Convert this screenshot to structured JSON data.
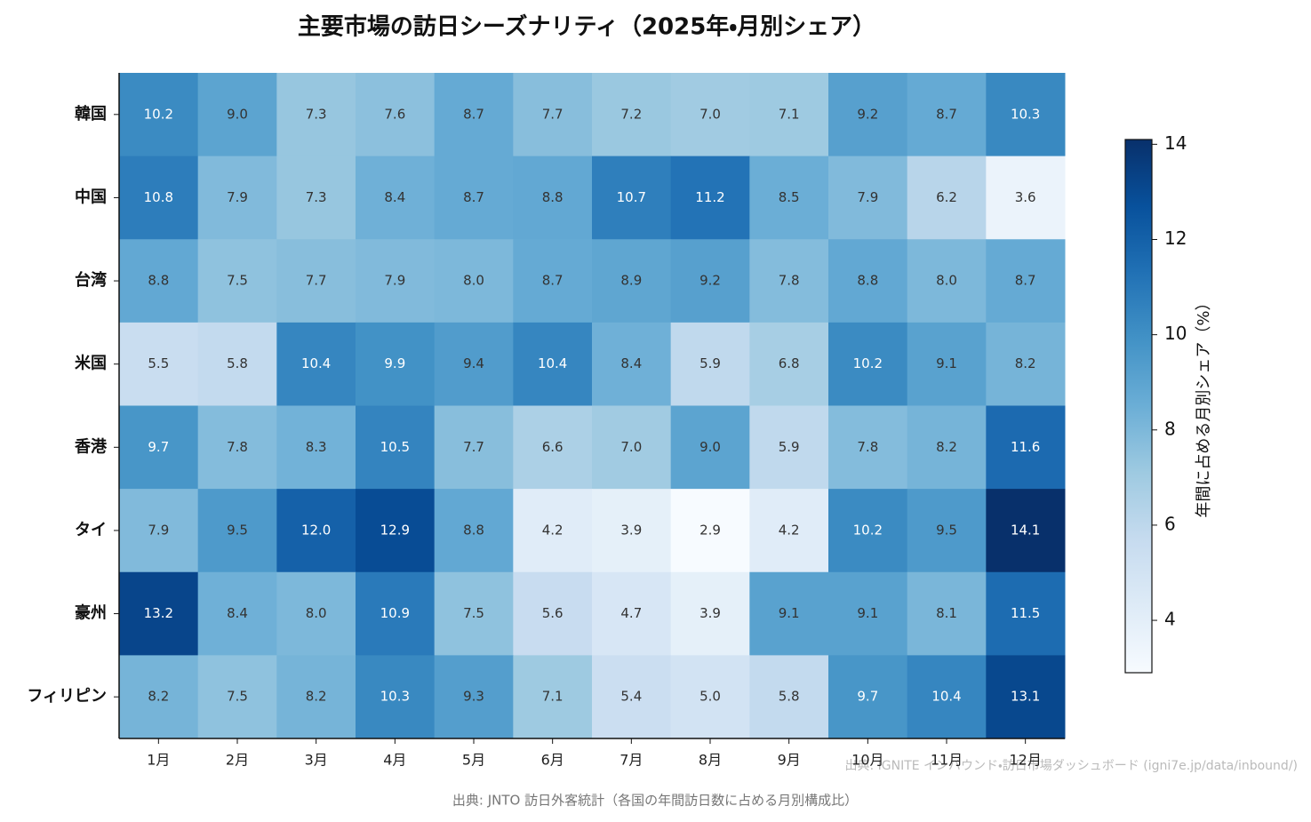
{
  "chart_data": {
    "type": "heatmap",
    "title": "主要市場の訪日シーズナリティ（2025年・月別シェア）",
    "categories": [
      "1月",
      "2月",
      "3月",
      "4月",
      "5月",
      "6月",
      "7月",
      "8月",
      "9月",
      "10月",
      "11月",
      "12月"
    ],
    "rows": [
      "韓国",
      "中国",
      "台湾",
      "米国",
      "香港",
      "タイ",
      "豪州",
      "フィリピン"
    ],
    "values": [
      [
        10.2,
        9.0,
        7.3,
        7.6,
        8.7,
        7.7,
        7.2,
        7.0,
        7.1,
        9.2,
        8.7,
        10.3
      ],
      [
        10.8,
        7.9,
        7.3,
        8.4,
        8.7,
        8.8,
        10.7,
        11.2,
        8.5,
        7.9,
        6.2,
        3.6
      ],
      [
        8.8,
        7.5,
        7.7,
        7.9,
        8.0,
        8.7,
        8.9,
        9.2,
        7.8,
        8.8,
        8.0,
        8.7
      ],
      [
        5.5,
        5.8,
        10.4,
        9.9,
        9.4,
        10.4,
        8.4,
        5.9,
        6.8,
        10.2,
        9.1,
        8.2
      ],
      [
        9.7,
        7.8,
        8.3,
        10.5,
        7.7,
        6.6,
        7.0,
        9.0,
        5.9,
        7.8,
        8.2,
        11.6
      ],
      [
        7.9,
        9.5,
        12.0,
        12.9,
        8.8,
        4.2,
        3.9,
        2.9,
        4.2,
        10.2,
        9.5,
        14.1
      ],
      [
        13.2,
        8.4,
        8.0,
        10.9,
        7.5,
        5.6,
        4.7,
        3.9,
        9.1,
        9.1,
        8.1,
        11.5
      ],
      [
        8.2,
        7.5,
        8.2,
        10.3,
        9.3,
        7.1,
        5.4,
        5.0,
        5.8,
        9.7,
        10.4,
        13.1
      ]
    ],
    "value_labels": [
      [
        "10.2",
        "9.0",
        "7.3",
        "7.6",
        "8.7",
        "7.7",
        "7.2",
        "7.0",
        "7.1",
        "9.2",
        "8.7",
        "10.3"
      ],
      [
        "10.8",
        "7.9",
        "7.3",
        "8.4",
        "8.7",
        "8.8",
        "10.7",
        "11.2",
        "8.5",
        "7.9",
        "6.2",
        "3.6"
      ],
      [
        "8.8",
        "7.5",
        "7.7",
        "7.9",
        "8.0",
        "8.7",
        "8.9",
        "9.2",
        "7.8",
        "8.8",
        "8.0",
        "8.7"
      ],
      [
        "5.5",
        "5.8",
        "10.4",
        "9.9",
        "9.4",
        "10.4",
        "8.4",
        "5.9",
        "6.8",
        "10.2",
        "9.1",
        "8.2"
      ],
      [
        "9.7",
        "7.8",
        "8.3",
        "10.5",
        "7.7",
        "6.6",
        "7.0",
        "9.0",
        "5.9",
        "7.8",
        "8.2",
        "11.6"
      ],
      [
        "7.9",
        "9.5",
        "12.0",
        "12.9",
        "8.8",
        "4.2",
        "3.9",
        "2.9",
        "4.2",
        "10.2",
        "9.5",
        "14.1"
      ],
      [
        "13.2",
        "8.4",
        "8.0",
        "10.9",
        "7.5",
        "5.6",
        "4.7",
        "3.9",
        "9.1",
        "9.1",
        "8.1",
        "11.5"
      ],
      [
        "8.2",
        "7.5",
        "8.2",
        "10.3",
        "9.3",
        "7.1",
        "5.4",
        "5.0",
        "5.8",
        "9.7",
        "10.4",
        "13.1"
      ]
    ],
    "colormap": [
      "#f7fbff",
      "#deebf7",
      "#c6dbef",
      "#9ecae1",
      "#6baed6",
      "#4292c6",
      "#2171b5",
      "#08519c",
      "#08306b"
    ],
    "clim": [
      2.9,
      14.1
    ],
    "cticks": [
      4,
      6,
      8,
      10,
      12,
      14
    ],
    "colorbar_label": "年間に占める月別シェア（%）",
    "source": "出典: JNTO 訪日外客統計（各国の年間訪日数に占める月別構成比）",
    "watermark": "出典: IGNITE インバウンド・訪日市場ダッシュボード (igni7e.jp/data/inbound/)"
  }
}
